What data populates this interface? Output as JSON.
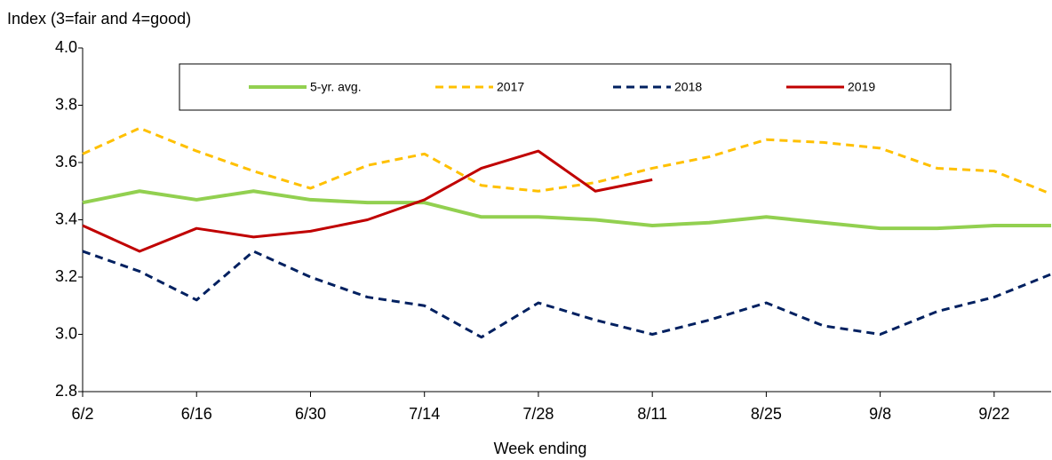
{
  "chart_data": {
    "type": "line",
    "y_label": "Index (3=fair and 4=good)",
    "x_label": "Week ending",
    "categories": [
      "6/2",
      null,
      "6/16",
      null,
      "6/30",
      null,
      "7/14",
      null,
      "7/28",
      null,
      "8/11",
      null,
      "8/25",
      null,
      "9/8",
      null,
      "9/22",
      null
    ],
    "series": [
      {
        "name": "5-yr. avg.",
        "color": "#92d050",
        "dash": "solid",
        "values": [
          3.46,
          3.5,
          3.47,
          3.5,
          3.47,
          3.46,
          3.46,
          3.41,
          3.41,
          3.4,
          3.38,
          3.39,
          3.41,
          3.39,
          3.37,
          3.37,
          3.38,
          3.38
        ]
      },
      {
        "name": "2017",
        "color": "#ffc000",
        "dash": "dashed",
        "values": [
          3.63,
          3.72,
          3.64,
          3.57,
          3.51,
          3.59,
          3.63,
          3.52,
          3.5,
          3.53,
          3.58,
          3.62,
          3.68,
          3.67,
          3.65,
          3.58,
          3.57,
          3.49
        ]
      },
      {
        "name": "2018",
        "color": "#002060",
        "dash": "dashed",
        "values": [
          3.29,
          3.22,
          3.12,
          3.29,
          3.2,
          3.13,
          3.1,
          2.99,
          3.11,
          3.05,
          3.0,
          3.05,
          3.11,
          3.03,
          3.0,
          3.08,
          3.13,
          3.21
        ]
      },
      {
        "name": "2019",
        "color": "#c00000",
        "dash": "solid",
        "values": [
          3.38,
          3.29,
          3.37,
          3.34,
          3.36,
          3.4,
          3.47,
          3.58,
          3.64,
          3.5,
          3.54,
          null,
          null,
          null,
          null,
          null,
          null,
          null
        ]
      }
    ],
    "ylim": [
      2.8,
      4.0
    ],
    "yticks": [
      {
        "value": 2.8,
        "label": "2.8"
      },
      {
        "value": 3,
        "label": "3.0"
      },
      3.2,
      3.4,
      3.6,
      3.8,
      {
        "value": 4,
        "label": "4.0"
      }
    ],
    "legend": "top"
  }
}
